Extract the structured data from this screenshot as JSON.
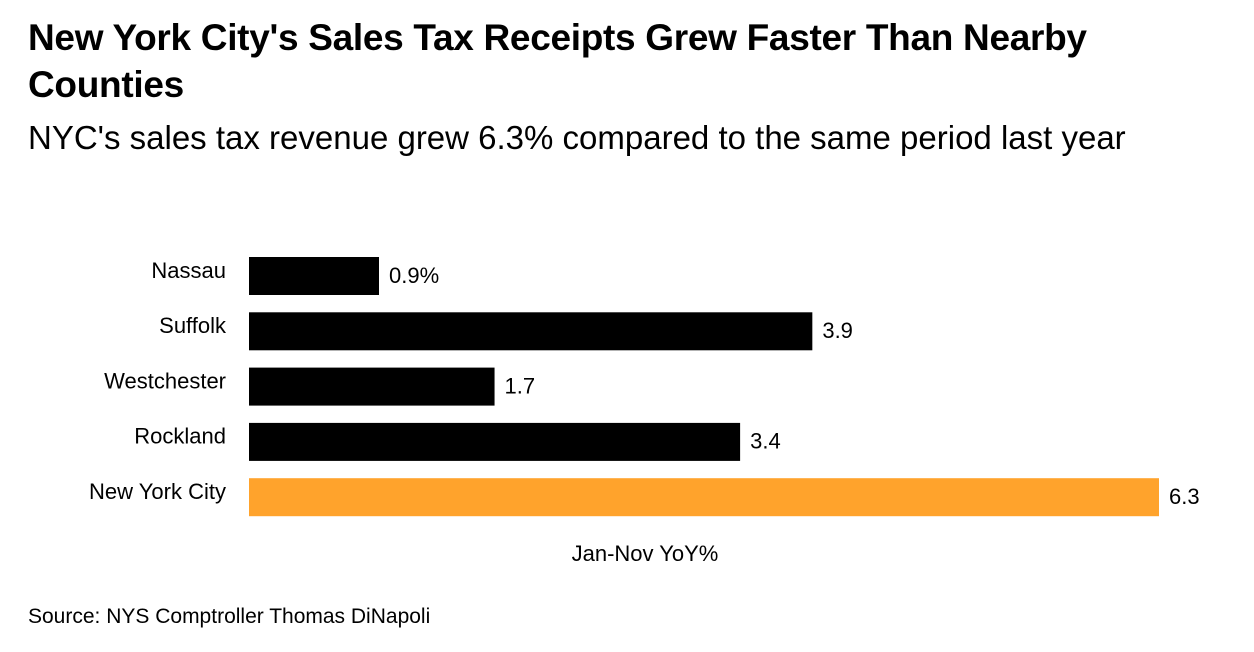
{
  "chart_data": {
    "type": "bar",
    "orientation": "horizontal",
    "title": "New York City's Sales Tax Receipts Grew Faster Than Nearby Counties",
    "subtitle": "NYC's sales tax revenue grew 6.3% compared to the same period last year",
    "categories": [
      "Nassau",
      "Suffolk",
      "Westchester",
      "Rockland",
      "New York City"
    ],
    "values": [
      0.9,
      3.9,
      1.7,
      3.4,
      6.3
    ],
    "value_labels": [
      "0.9%",
      "3.9",
      "1.7",
      "3.4",
      "6.3"
    ],
    "colors": [
      "#000000",
      "#000000",
      "#000000",
      "#000000",
      "#ffa32c"
    ],
    "xlabel": "Jan-Nov YoY%",
    "source": "Source: NYS Comptroller Thomas DiNapoli"
  }
}
